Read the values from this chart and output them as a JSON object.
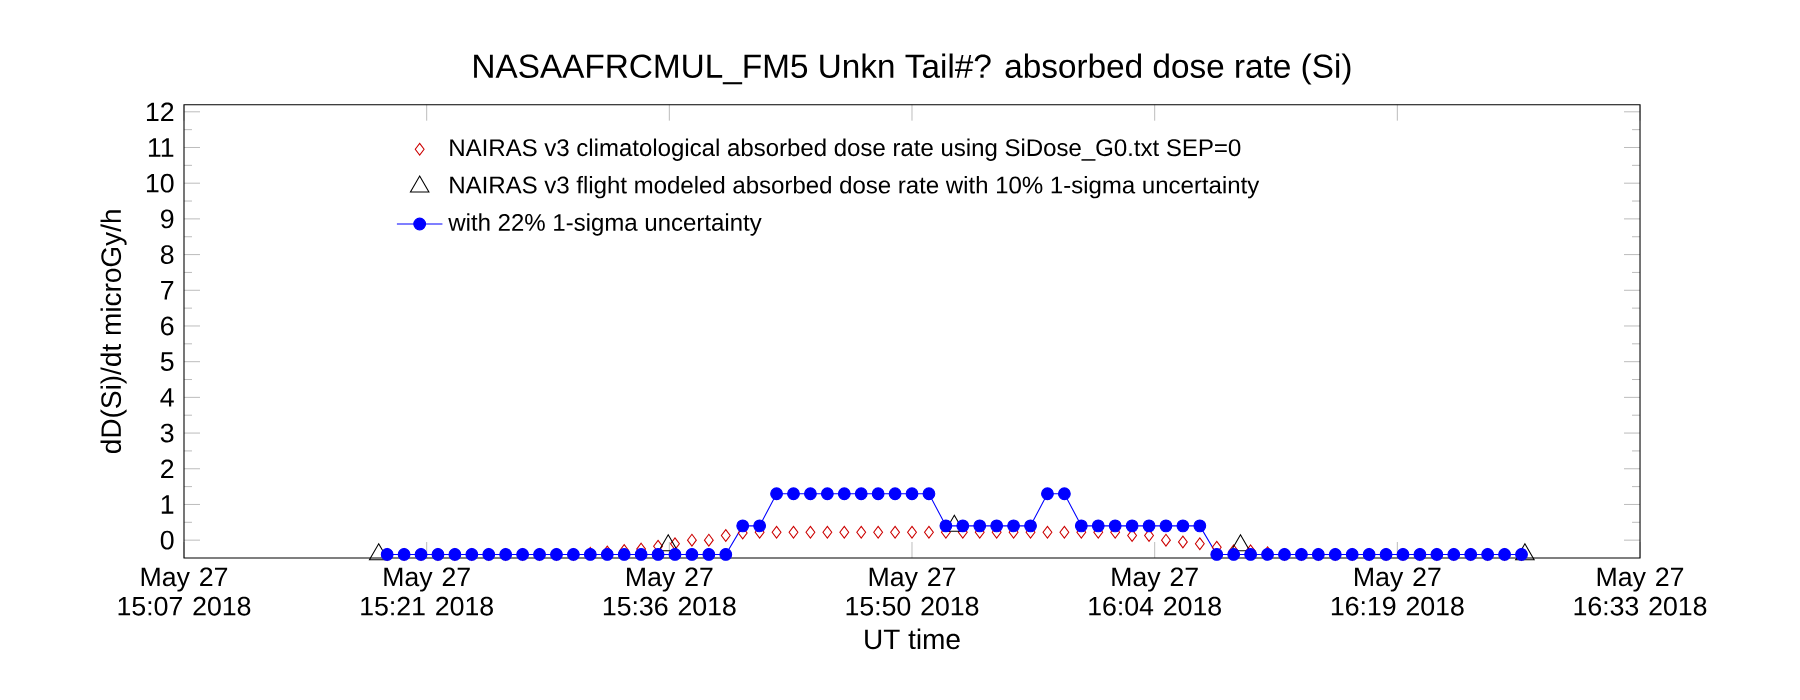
{
  "chart_data": {
    "type": "scatter",
    "title": "NASAAFRCMUL_FM5 Unkn Tail#? absorbed dose rate (Si)",
    "xlabel": "UT time",
    "ylabel": "dD(Si)/dt microGy/h",
    "xlim": [
      "2018-05-27T15:07",
      "2018-05-27T16:33"
    ],
    "ylim": [
      -0.5,
      12.2
    ],
    "xticks": [
      {
        "value": "2018-05-27T15:07",
        "label": "May 27 15:07 2018"
      },
      {
        "value": "2018-05-27T15:21:20",
        "label": "May 27 15:21 2018"
      },
      {
        "value": "2018-05-27T15:35:40",
        "label": "May 27 15:36 2018"
      },
      {
        "value": "2018-05-27T15:50",
        "label": "May 27 15:50 2018"
      },
      {
        "value": "2018-05-27T16:04:20",
        "label": "May 27 16:04 2018"
      },
      {
        "value": "2018-05-27T16:18:40",
        "label": "May 27 16:19 2018"
      },
      {
        "value": "2018-05-27T16:33",
        "label": "May 27 16:33 2018"
      }
    ],
    "yticks": [
      0,
      1,
      2,
      3,
      4,
      5,
      6,
      7,
      8,
      9,
      10,
      11,
      12
    ],
    "legend": "top left",
    "series": [
      {
        "name": "NAIRAS v3 climatological absorbed dose rate using SiDose_G0.txt SEP=0",
        "marker": "diamond",
        "color": "#cc0000",
        "x": [
          "2018-05-27T15:19",
          "2018-05-27T15:20",
          "2018-05-27T15:21",
          "2018-05-27T15:22",
          "2018-05-27T15:23",
          "2018-05-27T15:24",
          "2018-05-27T15:25",
          "2018-05-27T15:26",
          "2018-05-27T15:27",
          "2018-05-27T15:28",
          "2018-05-27T15:29",
          "2018-05-27T15:30",
          "2018-05-27T15:31",
          "2018-05-27T15:32",
          "2018-05-27T15:33",
          "2018-05-27T15:34",
          "2018-05-27T15:35",
          "2018-05-27T15:36",
          "2018-05-27T15:37",
          "2018-05-27T15:38",
          "2018-05-27T15:39",
          "2018-05-27T15:40",
          "2018-05-27T15:41",
          "2018-05-27T15:42",
          "2018-05-27T15:43",
          "2018-05-27T15:44",
          "2018-05-27T15:45",
          "2018-05-27T15:46",
          "2018-05-27T15:47",
          "2018-05-27T15:48",
          "2018-05-27T15:49",
          "2018-05-27T15:50",
          "2018-05-27T15:51",
          "2018-05-27T15:52",
          "2018-05-27T15:53",
          "2018-05-27T15:54",
          "2018-05-27T15:55",
          "2018-05-27T15:56",
          "2018-05-27T15:57",
          "2018-05-27T15:58",
          "2018-05-27T15:59",
          "2018-05-27T16:00",
          "2018-05-27T16:01",
          "2018-05-27T16:02",
          "2018-05-27T16:03",
          "2018-05-27T16:04",
          "2018-05-27T16:05",
          "2018-05-27T16:06",
          "2018-05-27T16:07",
          "2018-05-27T16:08",
          "2018-05-27T16:09",
          "2018-05-27T16:10",
          "2018-05-27T16:11",
          "2018-05-27T16:12",
          "2018-05-27T16:13",
          "2018-05-27T16:14",
          "2018-05-27T16:15",
          "2018-05-27T16:16",
          "2018-05-27T16:17",
          "2018-05-27T16:18",
          "2018-05-27T16:19",
          "2018-05-27T16:20",
          "2018-05-27T16:21",
          "2018-05-27T16:22",
          "2018-05-27T16:23",
          "2018-05-27T16:24",
          "2018-05-27T16:25",
          "2018-05-27T16:26"
        ],
        "values": [
          -0.4,
          -0.4,
          -0.4,
          -0.4,
          -0.4,
          -0.4,
          -0.4,
          -0.4,
          -0.4,
          -0.4,
          -0.4,
          -0.4,
          -0.37,
          -0.33,
          -0.29,
          -0.25,
          -0.17,
          -0.1,
          0,
          0,
          0.13,
          0.2,
          0.22,
          0.22,
          0.22,
          0.22,
          0.22,
          0.22,
          0.22,
          0.22,
          0.22,
          0.22,
          0.22,
          0.22,
          0.22,
          0.22,
          0.22,
          0.22,
          0.22,
          0.22,
          0.22,
          0.22,
          0.22,
          0.22,
          0.13,
          0.13,
          0,
          -0.05,
          -0.1,
          -0.2,
          -0.3,
          -0.3,
          -0.35,
          -0.4,
          -0.4,
          -0.4,
          -0.4,
          -0.4,
          -0.4,
          -0.4,
          -0.4,
          -0.4,
          -0.4,
          -0.4,
          -0.4,
          -0.4,
          -0.4,
          -0.4
        ]
      },
      {
        "name": "NAIRAS v3 flight modeled absorbed dose rate with 10% 1-sigma uncertainty",
        "marker": "triangle",
        "color": "#000000",
        "x": [
          "2018-05-27T15:18:30",
          "2018-05-27T15:35:36",
          "2018-05-27T15:52:30",
          "2018-05-27T16:09:24",
          "2018-05-27T16:26:12"
        ],
        "values": [
          -0.4,
          -0.15,
          0.4,
          -0.15,
          -0.4
        ]
      },
      {
        "name": "with 22% 1-sigma uncertainty",
        "type": "line",
        "marker": "circle",
        "color": "#0000ff",
        "x": [
          "2018-05-27T15:19",
          "2018-05-27T15:20",
          "2018-05-27T15:21",
          "2018-05-27T15:22",
          "2018-05-27T15:23",
          "2018-05-27T15:24",
          "2018-05-27T15:25",
          "2018-05-27T15:26",
          "2018-05-27T15:27",
          "2018-05-27T15:28",
          "2018-05-27T15:29",
          "2018-05-27T15:30",
          "2018-05-27T15:31",
          "2018-05-27T15:32",
          "2018-05-27T15:33",
          "2018-05-27T15:34",
          "2018-05-27T15:35",
          "2018-05-27T15:36",
          "2018-05-27T15:37",
          "2018-05-27T15:38",
          "2018-05-27T15:39",
          "2018-05-27T15:40",
          "2018-05-27T15:41",
          "2018-05-27T15:42",
          "2018-05-27T15:43",
          "2018-05-27T15:44",
          "2018-05-27T15:45",
          "2018-05-27T15:46",
          "2018-05-27T15:47",
          "2018-05-27T15:48",
          "2018-05-27T15:49",
          "2018-05-27T15:50",
          "2018-05-27T15:51",
          "2018-05-27T15:52",
          "2018-05-27T15:53",
          "2018-05-27T15:54",
          "2018-05-27T15:55",
          "2018-05-27T15:56",
          "2018-05-27T15:57",
          "2018-05-27T15:58",
          "2018-05-27T15:59",
          "2018-05-27T16:00",
          "2018-05-27T16:01",
          "2018-05-27T16:02",
          "2018-05-27T16:03",
          "2018-05-27T16:04",
          "2018-05-27T16:05",
          "2018-05-27T16:06",
          "2018-05-27T16:07",
          "2018-05-27T16:08",
          "2018-05-27T16:09",
          "2018-05-27T16:10",
          "2018-05-27T16:11",
          "2018-05-27T16:12",
          "2018-05-27T16:13",
          "2018-05-27T16:14",
          "2018-05-27T16:15",
          "2018-05-27T16:16",
          "2018-05-27T16:17",
          "2018-05-27T16:18",
          "2018-05-27T16:19",
          "2018-05-27T16:20",
          "2018-05-27T16:21",
          "2018-05-27T16:22",
          "2018-05-27T16:23",
          "2018-05-27T16:24",
          "2018-05-27T16:25",
          "2018-05-27T16:26"
        ],
        "values": [
          -0.4,
          -0.4,
          -0.4,
          -0.4,
          -0.4,
          -0.4,
          -0.4,
          -0.4,
          -0.4,
          -0.4,
          -0.4,
          -0.4,
          -0.4,
          -0.4,
          -0.4,
          -0.4,
          -0.4,
          -0.4,
          -0.4,
          -0.4,
          -0.4,
          0.4,
          0.4,
          1.3,
          1.3,
          1.3,
          1.3,
          1.3,
          1.3,
          1.3,
          1.3,
          1.3,
          1.3,
          0.4,
          0.4,
          0.4,
          0.4,
          0.4,
          0.4,
          1.3,
          1.3,
          0.4,
          0.4,
          0.4,
          0.4,
          0.4,
          0.4,
          0.4,
          0.4,
          -0.4,
          -0.4,
          -0.4,
          -0.4,
          -0.4,
          -0.4,
          -0.4,
          -0.4,
          -0.4,
          -0.4,
          -0.4,
          -0.4,
          -0.4,
          -0.4,
          -0.4,
          -0.4,
          -0.4,
          -0.4,
          -0.4
        ]
      }
    ]
  }
}
